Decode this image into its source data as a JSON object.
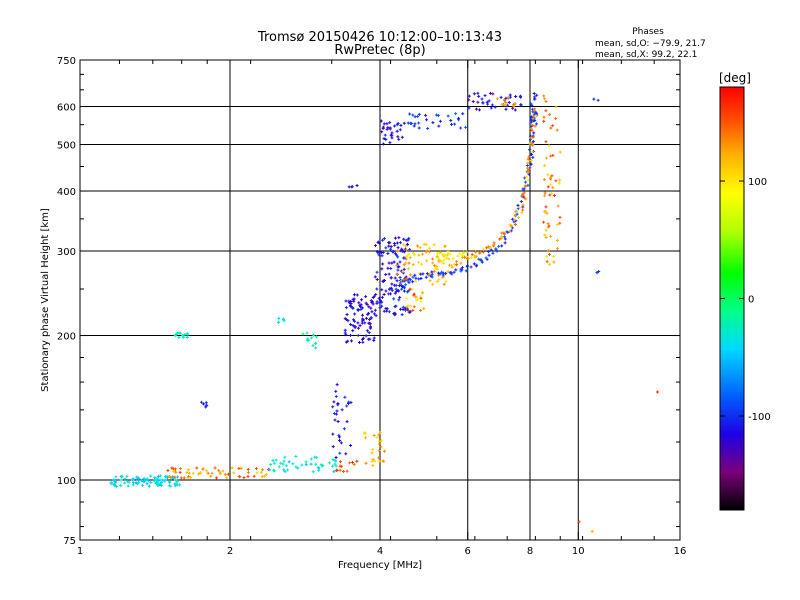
{
  "chart_data": {
    "type": "scatter",
    "title": "Tromsø 20150426 10:12:00–10:13:43",
    "subtitle": "RwPretec (8p)",
    "xlabel": "Frequency [MHz]",
    "ylabel": "Stationary phase Virtual Height [km]",
    "x_scale": "log",
    "y_scale": "log",
    "xlim": [
      1,
      16
    ],
    "ylim": [
      75,
      750
    ],
    "x_ticks": [
      1,
      2,
      4,
      6,
      8,
      10,
      16
    ],
    "y_ticks": [
      75,
      100,
      200,
      300,
      400,
      500,
      600,
      750
    ],
    "grid_x": [
      2,
      4,
      6,
      8,
      10
    ],
    "grid_y": [
      100,
      200,
      300,
      400,
      500,
      600
    ],
    "grid": true,
    "stats": {
      "heading": "Phases",
      "line_o": "mean, sd,O: −79.9, 21.7",
      "line_x": "mean, sd,X:  99.2, 22.1"
    },
    "colorbar": {
      "label": "[deg]",
      "range": [
        -180,
        180
      ],
      "ticks": [
        100,
        0,
        -100
      ],
      "colormap": [
        "#000000",
        "#7a007a",
        "#1e00e6",
        "#0060ff",
        "#00d8ff",
        "#00ff8a",
        "#00ff00",
        "#b4ff00",
        "#ffff00",
        "#ffb000",
        "#ff5000",
        "#ff0000"
      ]
    },
    "point_clusters": [
      {
        "x": [
          1.15,
          1.6
        ],
        "y": [
          97,
          102
        ],
        "n": 90,
        "phase": [
          -60,
          -30
        ]
      },
      {
        "x": [
          1.5,
          2.4
        ],
        "y": [
          101,
          106
        ],
        "n": 60,
        "phase": [
          100,
          160
        ]
      },
      {
        "x": [
          2.4,
          3.3
        ],
        "y": [
          104,
          112
        ],
        "n": 45,
        "phase": [
          -60,
          -20
        ]
      },
      {
        "x": [
          3.2,
          3.5
        ],
        "y": [
          110,
          165
        ],
        "n": 30,
        "phase": [
          -130,
          -90
        ]
      },
      {
        "x": [
          3.2,
          3.6
        ],
        "y": [
          103,
          110
        ],
        "n": 12,
        "phase": [
          130,
          175
        ]
      },
      {
        "x": [
          3.7,
          4.1
        ],
        "y": [
          107,
          126
        ],
        "n": 25,
        "phase": [
          90,
          130
        ]
      },
      {
        "x": [
          1.55,
          1.65
        ],
        "y": [
          198,
          203
        ],
        "n": 14,
        "phase": [
          -40,
          -20
        ]
      },
      {
        "x": [
          1.75,
          1.8
        ],
        "y": [
          140,
          146
        ],
        "n": 6,
        "phase": [
          -110,
          -90
        ]
      },
      {
        "x": [
          2.5,
          2.6
        ],
        "y": [
          213,
          218
        ],
        "n": 6,
        "phase": [
          -50,
          -30
        ]
      },
      {
        "x": [
          2.8,
          3.0
        ],
        "y": [
          188,
          205
        ],
        "n": 12,
        "phase": [
          -40,
          -10
        ]
      },
      {
        "x": [
          3.4,
          3.9
        ],
        "y": [
          193,
          245
        ],
        "n": 90,
        "phase": [
          -130,
          -100
        ]
      },
      {
        "x": [
          3.9,
          4.6
        ],
        "y": [
          220,
          320
        ],
        "n": 150,
        "phase": [
          -130,
          -90
        ]
      },
      {
        "x": [
          4.3,
          5.5
        ],
        "y": [
          255,
          310
        ],
        "n": 70,
        "phase": [
          90,
          140
        ]
      },
      {
        "x": [
          5.2,
          6.0
        ],
        "y": [
          285,
          300
        ],
        "n": 25,
        "phase": [
          60,
          110
        ]
      },
      {
        "x": [
          4.5,
          4.9
        ],
        "y": [
          225,
          250
        ],
        "n": 20,
        "phase": [
          80,
          170
        ]
      },
      {
        "x": [
          4.0,
          4.5
        ],
        "y": [
          500,
          560
        ],
        "n": 30,
        "phase": [
          -130,
          -100
        ]
      },
      {
        "x": [
          4.5,
          6.0
        ],
        "y": [
          540,
          580
        ],
        "n": 30,
        "phase": [
          -110,
          -80
        ]
      },
      {
        "x": [
          6.0,
          7.7
        ],
        "y": [
          590,
          640
        ],
        "n": 40,
        "phase": [
          -140,
          -100
        ]
      },
      {
        "x": [
          6.8,
          7.5
        ],
        "y": [
          600,
          630
        ],
        "n": 10,
        "phase": [
          100,
          140
        ]
      },
      {
        "x": [
          8.0,
          8.3
        ],
        "y": [
          560,
          640
        ],
        "n": 20,
        "phase": [
          -110,
          -90
        ]
      },
      {
        "x": [
          8.5,
          9.2
        ],
        "y": [
          280,
          640
        ],
        "n": 60,
        "phase": [
          90,
          160
        ]
      },
      {
        "x": [
          3.4,
          3.6
        ],
        "y": [
          405,
          415
        ],
        "n": 4,
        "phase": [
          -110,
          -100
        ]
      },
      {
        "x": [
          10.7,
          11.0
        ],
        "y": [
          270,
          275
        ],
        "n": 2,
        "phase": [
          -100,
          -90
        ]
      },
      {
        "x": [
          10.7,
          11.0
        ],
        "y": [
          615,
          625
        ],
        "n": 2,
        "phase": [
          -100,
          -90
        ]
      },
      {
        "x": [
          14.3,
          14.6
        ],
        "y": [
          150,
          155
        ],
        "n": 1,
        "phase": [
          150,
          170
        ]
      },
      {
        "x": [
          10.0,
          10.1
        ],
        "y": [
          80,
          82
        ],
        "n": 1,
        "phase": [
          130,
          150
        ]
      },
      {
        "x": [
          10.5,
          10.7
        ],
        "y": [
          78,
          79
        ],
        "n": 1,
        "phase": [
          100,
          120
        ]
      }
    ],
    "curves": [
      {
        "name": "",
        "x": [
          4.3,
          4.6,
          5.0,
          5.5,
          6.0,
          6.5,
          7.0,
          7.5,
          7.8,
          8.0,
          8.1,
          8.2
        ],
        "y": [
          250,
          262,
          268,
          270,
          275,
          290,
          310,
          350,
          400,
          460,
          520,
          600
        ],
        "phase": [
          -110,
          -80
        ]
      },
      {
        "name": "",
        "x": [
          5.5,
          6.0,
          6.5,
          7.0,
          7.5,
          7.8,
          8.0,
          8.1,
          8.2
        ],
        "y": [
          280,
          290,
          300,
          320,
          350,
          390,
          450,
          520,
          600
        ],
        "phase": [
          90,
          150
        ]
      }
    ]
  }
}
